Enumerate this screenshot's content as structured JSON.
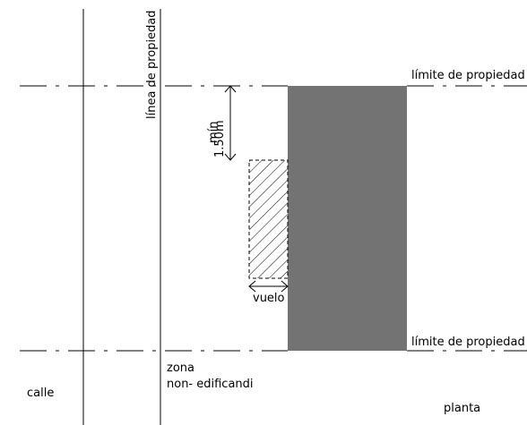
{
  "labels": {
    "property_line_vertical": "línea de propiedad",
    "property_limit_top": "límite de propiedad",
    "property_limit_bottom": "límite de propiedad",
    "setback_value": "1.50m",
    "setback_min": "mín",
    "overhang": "vuelo",
    "zone_line1": "zona",
    "zone_line2": "non- edificandi",
    "street": "calle",
    "plan": "planta"
  },
  "colors": {
    "line": "#000000",
    "building_fill": "#737373",
    "hatch": "#000000",
    "background": "#ffffff"
  }
}
